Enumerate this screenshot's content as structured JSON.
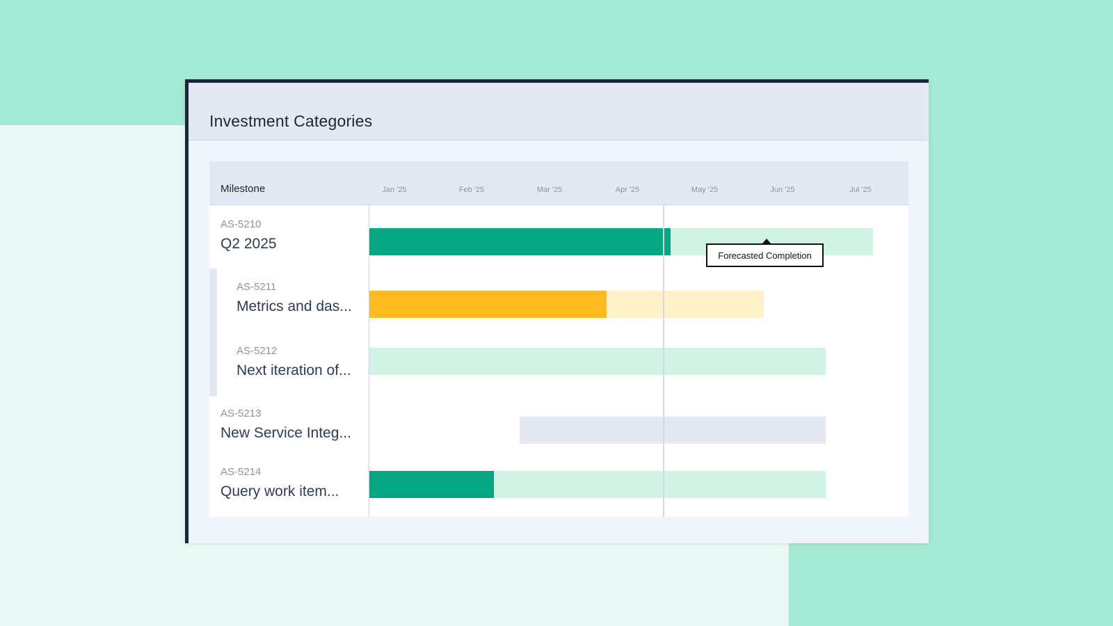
{
  "panel": {
    "title": "Investment Categories"
  },
  "timeline": {
    "column_header": "Milestone",
    "months": [
      "Jan '25",
      "Feb '25",
      "Mar '25",
      "Apr '25",
      "May '25",
      "Jun '25",
      "Jul '25"
    ]
  },
  "tooltip": {
    "text": "Forecasted Completion"
  },
  "rows": [
    {
      "id": "AS-5210",
      "name": "Q2 2025",
      "status_color": "green"
    },
    {
      "id": "AS-5211",
      "name": "Metrics and das...",
      "status_color": "amber"
    },
    {
      "id": "AS-5212",
      "name": "Next iteration of...",
      "status_color": "green"
    },
    {
      "id": "AS-5213",
      "name": "New Service Integ...",
      "status_color": "gray"
    },
    {
      "id": "AS-5214",
      "name": "Query work item...",
      "status_color": "green"
    }
  ],
  "colors": {
    "progress_green": "#05a782",
    "planned_green": "#d0f3e3",
    "progress_amber": "#ffba1f",
    "planned_amber": "#fff0c7",
    "planned_gray": "#e3e8f2",
    "frame_dark": "#1b2638"
  }
}
